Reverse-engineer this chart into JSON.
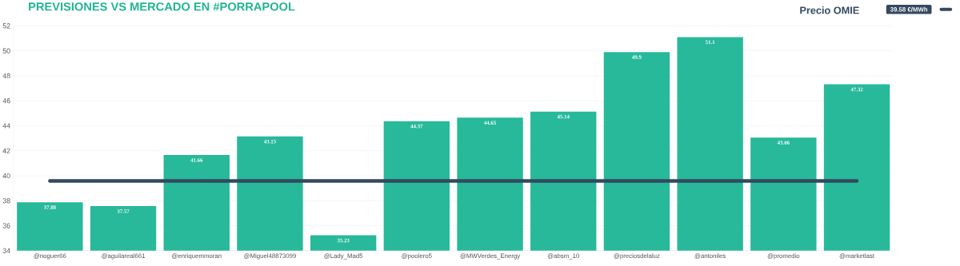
{
  "chart_data": {
    "type": "bar",
    "title": "PREVISIONES VS MERCADO EN #PORRAPOOL",
    "legend_title": "Precio OMIE",
    "categories": [
      "@noguer66",
      "@aguilareal661",
      "@enriquemmoran",
      "@Miguel48873099",
      "@Lady_Mad5",
      "@poolero5",
      "@MWVerdes_Energy",
      "@absm_10",
      "@preciosdelaluz",
      "@antoniles",
      "@promedio",
      "@marketlast"
    ],
    "series": [
      {
        "color": "#27b99a",
        "values": [
          37.88,
          37.57,
          41.66,
          43.15,
          35.23,
          44.37,
          44.65,
          45.14,
          49.9,
          51.1,
          43.06,
          47.32
        ],
        "value_labels": [
          "37.88",
          "37.57",
          "41.66",
          "43.15",
          "35.23",
          "44.37",
          "44.65",
          "45.14",
          "49.9",
          "51.1",
          "43.06",
          "47.32"
        ]
      },
      {
        "type": "line",
        "name": "39.58 €/MWh",
        "color": "#34495e",
        "values": [
          39.58,
          39.58,
          39.58,
          39.58,
          39.58,
          39.58,
          39.58,
          39.58,
          39.58,
          39.58,
          39.58,
          39.58
        ]
      }
    ],
    "ylim": [
      34,
      52
    ],
    "yticks": [
      34,
      36,
      38,
      40,
      42,
      44,
      46,
      48,
      50,
      52
    ],
    "grid": "y",
    "legend": "top right"
  }
}
